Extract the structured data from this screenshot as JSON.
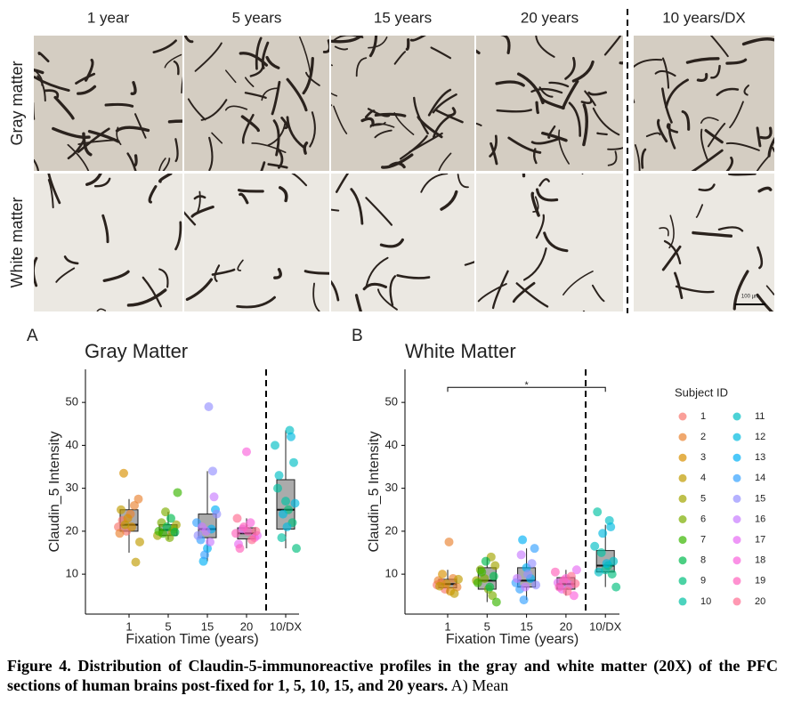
{
  "micrographs": {
    "columns": [
      "1 year",
      "5 years",
      "15 years",
      "20 years",
      "10 years/DX"
    ],
    "rows": [
      "Gray matter",
      "White matter"
    ],
    "scale_bar": "100 µm"
  },
  "chart_data": [
    {
      "type": "box",
      "panel": "A",
      "title": "Gray Matter",
      "ylabel": "Claudin_5 Intensity",
      "xlabel": "Fixation Time (years)",
      "categories": [
        "1",
        "5",
        "15",
        "20",
        "10/DX"
      ],
      "ylim": [
        0.7,
        57.7
      ],
      "yticks": [
        10,
        20,
        30,
        40,
        50
      ],
      "groups": [
        {
          "box": {
            "whislo": 15,
            "q1": 20,
            "med": 21.5,
            "q3": 25,
            "whishi": 27.5
          },
          "subjects": [
            {
              "name": "1",
              "values": [
                21,
                22.5,
                20
              ]
            },
            {
              "name": "2",
              "values": [
                24,
                26,
                27.5,
                19.5
              ]
            },
            {
              "name": "3",
              "values": [
                33.5,
                23,
                21
              ]
            },
            {
              "name": "4",
              "values": [
                12.8,
                17.5,
                25,
                21.5
              ]
            }
          ]
        },
        {
          "box": {
            "whislo": 18,
            "q1": 19,
            "med": 20.3,
            "q3": 21.5,
            "whishi": 24.5
          },
          "subjects": [
            {
              "name": "5",
              "values": [
                20,
                21.5,
                19
              ]
            },
            {
              "name": "6",
              "values": [
                22,
                24.5,
                18.5,
                20.5
              ]
            },
            {
              "name": "7",
              "values": [
                29,
                20,
                19.5
              ]
            },
            {
              "name": "8",
              "values": [
                21,
                23,
                19.8
              ]
            }
          ]
        },
        {
          "box": {
            "whislo": 13,
            "q1": 18.5,
            "med": 20.5,
            "q3": 24,
            "whishi": 34
          },
          "subjects": [
            {
              "name": "13",
              "values": [
                13,
                16,
                20.5,
                25
              ]
            },
            {
              "name": "14",
              "values": [
                22,
                18,
                14.5
              ]
            },
            {
              "name": "15",
              "values": [
                49,
                34,
                24,
                19
              ]
            },
            {
              "name": "16",
              "values": [
                21,
                20,
                17.5,
                28
              ]
            }
          ]
        },
        {
          "box": {
            "whislo": 16,
            "q1": 18.2,
            "med": 19.5,
            "q3": 20.8,
            "whishi": 23
          },
          "subjects": [
            {
              "name": "17",
              "values": [
                19,
                17,
                20.5
              ]
            },
            {
              "name": "18",
              "values": [
                38.5,
                22,
                18.5
              ]
            },
            {
              "name": "19",
              "values": [
                19.5,
                16,
                21,
                20
              ]
            },
            {
              "name": "20",
              "values": [
                18,
                20,
                23
              ]
            }
          ]
        },
        {
          "box": {
            "whislo": 16,
            "q1": 20.5,
            "med": 25,
            "q3": 32,
            "whishi": 43.5
          },
          "subjects": [
            {
              "name": "9",
              "values": [
                25,
                22,
                16
              ]
            },
            {
              "name": "10",
              "values": [
                30,
                18.5,
                27
              ]
            },
            {
              "name": "11",
              "values": [
                43.5,
                36,
                40,
                33
              ]
            },
            {
              "name": "12",
              "values": [
                24,
                21,
                42,
                26.5
              ]
            }
          ]
        }
      ]
    },
    {
      "type": "box",
      "panel": "B",
      "title": "White Matter",
      "ylabel": "Claudin_5 Intensity",
      "xlabel": "Fixation Time (years)",
      "categories": [
        "1",
        "5",
        "15",
        "20",
        "10/DX"
      ],
      "ylim": [
        0.7,
        57.7
      ],
      "yticks": [
        10,
        20,
        30,
        40,
        50
      ],
      "significance": {
        "between": [
          "1",
          "10/DX"
        ],
        "y": 53.5,
        "label": "*"
      },
      "groups": [
        {
          "box": {
            "whislo": 5.5,
            "q1": 6.8,
            "med": 7.7,
            "q3": 8.8,
            "whishi": 11
          },
          "subjects": [
            {
              "name": "1",
              "values": [
                7.5,
                8,
                6.5
              ]
            },
            {
              "name": "2",
              "values": [
                17.5,
                9,
                7,
                8.5
              ]
            },
            {
              "name": "3",
              "values": [
                10,
                7.8,
                6
              ]
            },
            {
              "name": "4",
              "values": [
                5.5,
                8.8,
                7.2
              ]
            }
          ]
        },
        {
          "box": {
            "whislo": 3.5,
            "q1": 6.5,
            "med": 8.5,
            "q3": 11.5,
            "whishi": 14
          },
          "subjects": [
            {
              "name": "5",
              "values": [
                14,
                12,
                8.5
              ]
            },
            {
              "name": "6",
              "values": [
                11,
                9,
                6.5,
                5
              ]
            },
            {
              "name": "7",
              "values": [
                3.5,
                8,
                10.5
              ]
            },
            {
              "name": "8",
              "values": [
                13,
                7,
                9.5
              ]
            }
          ]
        },
        {
          "box": {
            "whislo": 4,
            "q1": 7,
            "med": 8.5,
            "q3": 11.5,
            "whishi": 16
          },
          "subjects": [
            {
              "name": "13",
              "values": [
                18,
                11.5,
                9
              ]
            },
            {
              "name": "14",
              "values": [
                16,
                8,
                6.5,
                4
              ]
            },
            {
              "name": "15",
              "values": [
                10,
                12.5,
                7.5
              ]
            },
            {
              "name": "16",
              "values": [
                9,
                14.5,
                7
              ]
            }
          ]
        },
        {
          "box": {
            "whislo": 5,
            "q1": 6.5,
            "med": 7.7,
            "q3": 9.2,
            "whishi": 11
          },
          "subjects": [
            {
              "name": "17",
              "values": [
                11,
                8,
                6.5
              ]
            },
            {
              "name": "18",
              "values": [
                9,
                7.5,
                5
              ]
            },
            {
              "name": "19",
              "values": [
                10.5,
                7,
                8.5
              ]
            },
            {
              "name": "20",
              "values": [
                6,
                9.5,
                7.8
              ]
            }
          ]
        },
        {
          "box": {
            "whislo": 7,
            "q1": 10.5,
            "med": 12,
            "q3": 15.5,
            "whishi": 21.5
          },
          "subjects": [
            {
              "name": "9",
              "values": [
                12,
                10,
                7
              ]
            },
            {
              "name": "10",
              "values": [
                24.5,
                15,
                11
              ]
            },
            {
              "name": "11",
              "values": [
                22.5,
                13,
                16.5,
                10.5
              ]
            },
            {
              "name": "12",
              "values": [
                19.5,
                12.5,
                21
              ]
            }
          ]
        }
      ]
    }
  ],
  "legend": {
    "title": "Subject ID",
    "entries": [
      {
        "name": "1",
        "color": "#F8766D"
      },
      {
        "name": "2",
        "color": "#EA8331"
      },
      {
        "name": "3",
        "color": "#D89000"
      },
      {
        "name": "4",
        "color": "#C09B00"
      },
      {
        "name": "5",
        "color": "#A3A500"
      },
      {
        "name": "6",
        "color": "#7CAE00"
      },
      {
        "name": "7",
        "color": "#39B600"
      },
      {
        "name": "8",
        "color": "#00BB4E"
      },
      {
        "name": "9",
        "color": "#00BF7D"
      },
      {
        "name": "10",
        "color": "#00C1A3"
      },
      {
        "name": "11",
        "color": "#00BFC4"
      },
      {
        "name": "12",
        "color": "#00BAE0"
      },
      {
        "name": "13",
        "color": "#00B0F6"
      },
      {
        "name": "14",
        "color": "#35A2FF"
      },
      {
        "name": "15",
        "color": "#9590FF"
      },
      {
        "name": "16",
        "color": "#C77CFF"
      },
      {
        "name": "17",
        "color": "#E76BF3"
      },
      {
        "name": "18",
        "color": "#FA62DB"
      },
      {
        "name": "19",
        "color": "#FF62BC"
      },
      {
        "name": "20",
        "color": "#FF6C91"
      }
    ]
  },
  "caption": {
    "bold": "Figure 4. Distribution of Claudin-5-immunoreactive profiles in the gray and white matter (20X) of the PFC sections of human brains post-fixed for 1, 5, 10, 15, and 20 years.",
    "text": "A) Mean"
  }
}
